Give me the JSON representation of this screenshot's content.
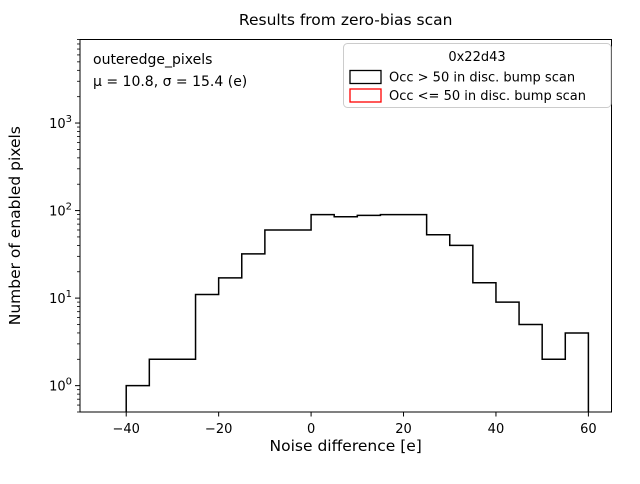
{
  "figure": {
    "title": "Results from zero-bias scan"
  },
  "chart_data": {
    "type": "bar",
    "subtype": "step-histogram",
    "title": "Results from zero-bias scan",
    "xlabel": "Noise difference [e]",
    "ylabel": "Number of enabled pixels",
    "yscale": "log",
    "grid": false,
    "xlim": [
      -50,
      65
    ],
    "ylim": [
      0.5,
      9000
    ],
    "x_ticks": [
      -40,
      -20,
      0,
      20,
      40,
      60
    ],
    "y_major_ticks": [
      1,
      10,
      100,
      1000
    ],
    "bin_edges": [
      -40,
      -35,
      -30,
      -25,
      -20,
      -15,
      -10,
      -5,
      0,
      5,
      10,
      15,
      20,
      25,
      30,
      35,
      40,
      45,
      50,
      55,
      60
    ],
    "series": [
      {
        "name": "Occ > 50 in disc. bump scan",
        "color": "#000000",
        "counts": [
          1,
          2,
          2,
          11,
          17,
          32,
          60,
          60,
          90,
          85,
          88,
          90,
          90,
          53,
          40,
          15,
          9,
          5,
          2,
          4
        ]
      },
      {
        "name": "Occ <= 50 in disc. bump scan",
        "color": "#ff0000",
        "counts": []
      }
    ],
    "legend": {
      "position": "upper right",
      "title": "0x22d43",
      "entries": [
        "Occ > 50 in disc. bump scan",
        "Occ <= 50 in disc. bump scan"
      ]
    },
    "annotation": {
      "line1": "outeredge_pixels",
      "line2": "μ = 10.8, σ = 15.4 (e)"
    }
  }
}
